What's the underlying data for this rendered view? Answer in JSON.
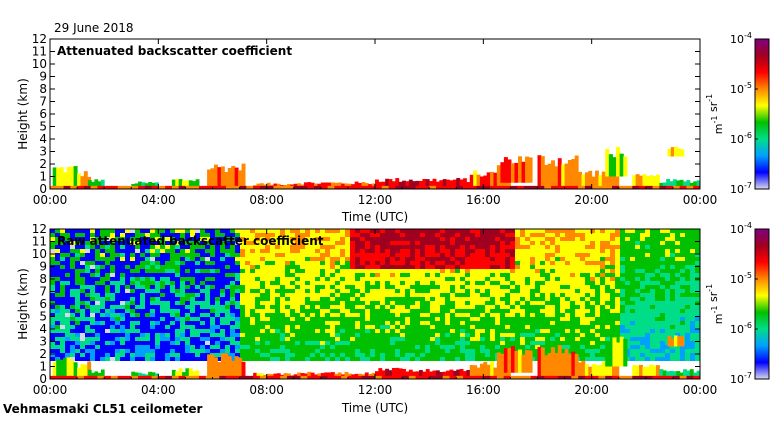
{
  "header": {
    "date": "29 June 2018"
  },
  "footer": {
    "instrument": "Vehmasmaki CL51 ceilometer"
  },
  "chart_data": [
    {
      "type": "heatmap",
      "title": "Attenuated backscatter coefficient",
      "xlabel": "Time (UTC)",
      "ylabel": "Height (km)",
      "x_ticks": [
        "00:00",
        "04:00",
        "08:00",
        "12:00",
        "16:00",
        "20:00",
        "00:00"
      ],
      "x_range_hours": [
        0,
        24
      ],
      "y_ticks": [
        0,
        1,
        2,
        3,
        4,
        5,
        6,
        7,
        8,
        9,
        10,
        11,
        12
      ],
      "ylim": [
        0,
        12
      ],
      "colorbar": {
        "scale": "log",
        "range": [
          1e-07,
          0.0001
        ],
        "tick_base": [
          "10",
          "10",
          "10",
          "10"
        ],
        "tick_exp": [
          "-7",
          "-6",
          "-5",
          "-4"
        ],
        "units_main": [
          "m",
          " sr"
        ],
        "units_exp": [
          "-1",
          "-1"
        ],
        "colors": [
          "#d8d8ec",
          "#0000ff",
          "#00a0ff",
          "#00dd88",
          "#00c000",
          "#ffff00",
          "#ff8800",
          "#ff0000",
          "#a00020",
          "#800080"
        ]
      }
    },
    {
      "type": "heatmap",
      "title": "Raw attenuated backscatter coefficient",
      "xlabel": "Time (UTC)",
      "ylabel": "Height (km)",
      "x_ticks": [
        "00:00",
        "04:00",
        "08:00",
        "12:00",
        "16:00",
        "20:00",
        "00:00"
      ],
      "x_range_hours": [
        0,
        24
      ],
      "y_ticks": [
        0,
        1,
        2,
        3,
        4,
        5,
        6,
        7,
        8,
        9,
        10,
        11,
        12
      ],
      "ylim": [
        0,
        12
      ],
      "colorbar": {
        "scale": "log",
        "range": [
          1e-07,
          0.0001
        ],
        "tick_base": [
          "10",
          "10",
          "10",
          "10"
        ],
        "tick_exp": [
          "-7",
          "-6",
          "-5",
          "-4"
        ],
        "units_main": [
          "m",
          " sr"
        ],
        "units_exp": [
          "-1",
          "-1"
        ],
        "colors": [
          "#d8d8ec",
          "#0000ff",
          "#00a0ff",
          "#00dd88",
          "#00c000",
          "#ffff00",
          "#ff8800",
          "#ff0000",
          "#a00020",
          "#800080"
        ]
      }
    }
  ]
}
